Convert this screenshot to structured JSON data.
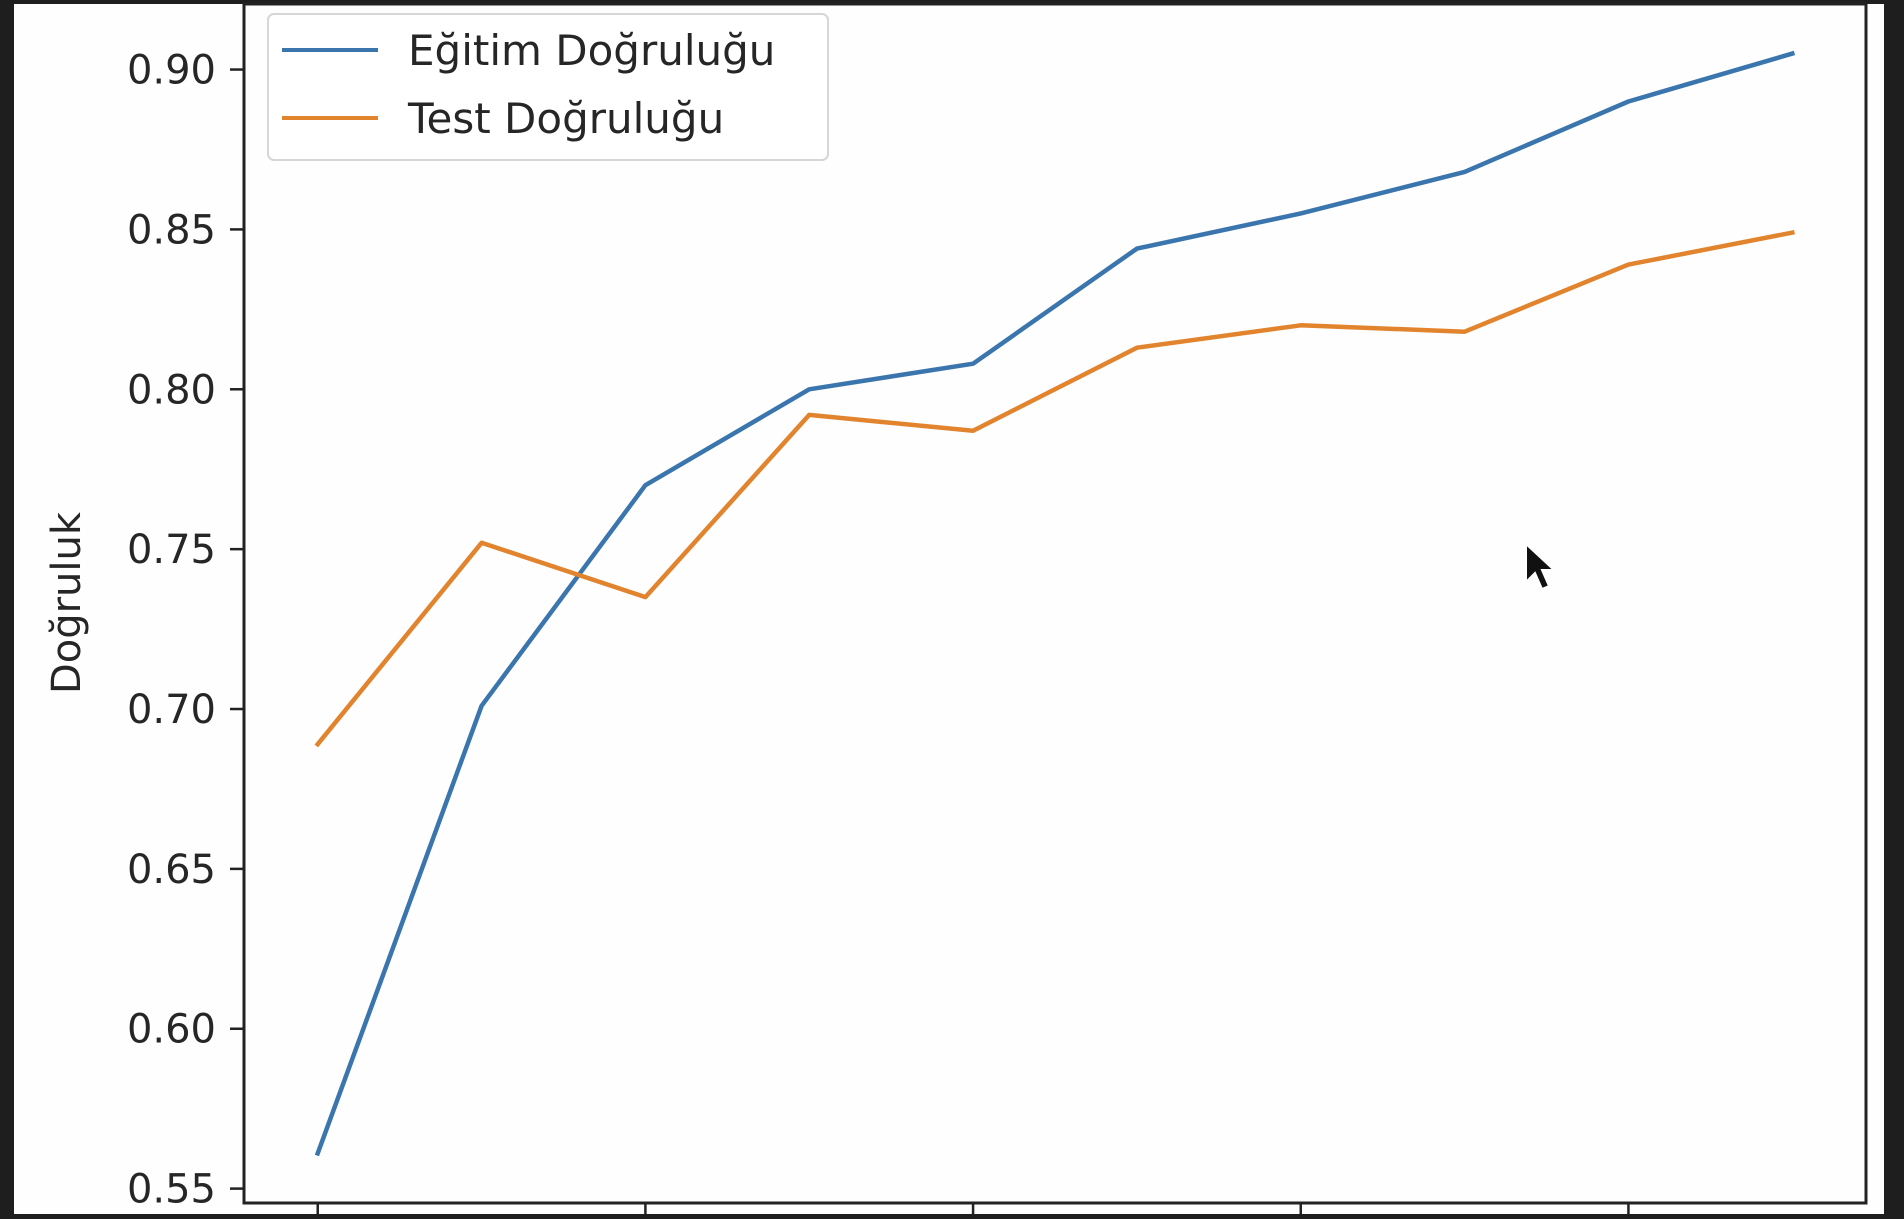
{
  "chart_data": {
    "type": "line",
    "x": [
      1,
      2,
      3,
      4,
      5,
      6,
      7,
      8,
      9,
      10
    ],
    "series": [
      {
        "name": "Eğitim Doğruluğu",
        "color": "#3a75ae",
        "values": [
          0.561,
          0.701,
          0.77,
          0.8,
          0.808,
          0.844,
          0.855,
          0.868,
          0.89,
          0.905
        ]
      },
      {
        "name": "Test Doğruluğu",
        "color": "#e2842e",
        "values": [
          0.689,
          0.752,
          0.735,
          0.792,
          0.787,
          0.813,
          0.82,
          0.818,
          0.839,
          0.849
        ]
      }
    ],
    "title": "",
    "xlabel": "",
    "ylabel": "Doğruluk",
    "yticks": [
      "0.55",
      "0.60",
      "0.65",
      "0.70",
      "0.75",
      "0.80",
      "0.85",
      "0.90"
    ],
    "ylim": [
      0.5455,
      0.9205
    ],
    "xlim": [
      0.55,
      10.45
    ],
    "xtick_positions": [
      1,
      3,
      5,
      7,
      9
    ],
    "grid": false,
    "legend_position": "upper-left",
    "colors": {
      "background": "#1e1e1e",
      "axes_face": "#fefefe",
      "spine": "#222222",
      "text": "#262626"
    }
  }
}
